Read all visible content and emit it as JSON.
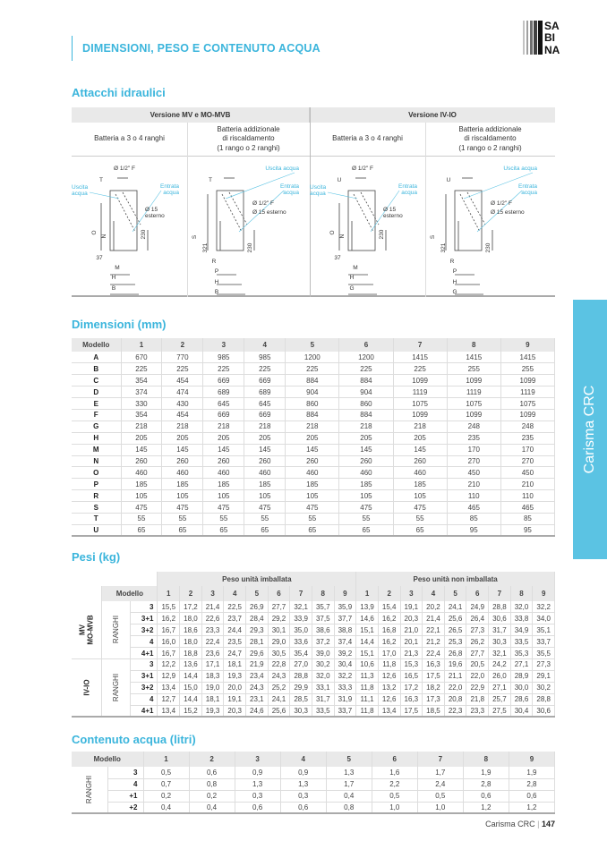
{
  "header": {
    "title": "DIMENSIONI, PESO E CONTENUTO ACQUA",
    "logo_text": "SABIANA",
    "accent": "#3bb5dc"
  },
  "side_tab": {
    "label": "Carisma CRC",
    "color": "#5bc3e3"
  },
  "attacchi": {
    "title": "Attacchi idraulici",
    "versions": [
      "Versione MV e MO-MVB",
      "Versione IV-IO"
    ],
    "columns": [
      "Batteria a 3 o 4 ranghi",
      "Batteria addizionale\ndi riscaldamento\n(1 rango o 2 ranghi)",
      "Batteria a 3 o 4 ranghi",
      "Batteria addizionale\ndi riscaldamento\n(1 rango o 2 ranghi)"
    ],
    "panels": [
      {
        "labels": [
          "Ø 1/2\" F",
          "T",
          "Uscita",
          "acqua",
          "Entrata",
          "acqua",
          "Ø 15",
          "esterno",
          "O",
          "N",
          "230",
          "37",
          "M",
          "H",
          "B"
        ]
      },
      {
        "labels": [
          "Uscita acqua",
          "T",
          "Entrata",
          "acqua",
          "Ø 1/2\" F",
          "Ø 15 esterno",
          "S",
          "321",
          "230",
          "R",
          "P",
          "H",
          "B"
        ]
      },
      {
        "labels": [
          "Ø 1/2\" F",
          "U",
          "Uscita",
          "acqua",
          "Entrata",
          "acqua",
          "Ø 15",
          "esterno",
          "O",
          "N",
          "230",
          "37",
          "M",
          "H",
          "G"
        ]
      },
      {
        "labels": [
          "Uscita acqua",
          "U",
          "Entrata",
          "acqua",
          "Ø 1/2\" F",
          "Ø 15 esterno",
          "S",
          "321",
          "230",
          "R",
          "P",
          "H",
          "G"
        ]
      }
    ]
  },
  "dimensioni": {
    "title": "Dimensioni (mm)",
    "header": [
      "Modello",
      "1",
      "2",
      "3",
      "4",
      "5",
      "6",
      "7",
      "8",
      "9"
    ],
    "rows": [
      [
        "A",
        "670",
        "770",
        "985",
        "985",
        "1200",
        "1200",
        "1415",
        "1415",
        "1415"
      ],
      [
        "B",
        "225",
        "225",
        "225",
        "225",
        "225",
        "225",
        "225",
        "255",
        "255"
      ],
      [
        "C",
        "354",
        "454",
        "669",
        "669",
        "884",
        "884",
        "1099",
        "1099",
        "1099"
      ],
      [
        "D",
        "374",
        "474",
        "689",
        "689",
        "904",
        "904",
        "1119",
        "1119",
        "1119"
      ],
      [
        "E",
        "330",
        "430",
        "645",
        "645",
        "860",
        "860",
        "1075",
        "1075",
        "1075"
      ],
      [
        "F",
        "354",
        "454",
        "669",
        "669",
        "884",
        "884",
        "1099",
        "1099",
        "1099"
      ],
      [
        "G",
        "218",
        "218",
        "218",
        "218",
        "218",
        "218",
        "218",
        "248",
        "248"
      ],
      [
        "H",
        "205",
        "205",
        "205",
        "205",
        "205",
        "205",
        "205",
        "235",
        "235"
      ],
      [
        "M",
        "145",
        "145",
        "145",
        "145",
        "145",
        "145",
        "145",
        "170",
        "170"
      ],
      [
        "N",
        "260",
        "260",
        "260",
        "260",
        "260",
        "260",
        "260",
        "270",
        "270"
      ],
      [
        "O",
        "460",
        "460",
        "460",
        "460",
        "460",
        "460",
        "460",
        "450",
        "450"
      ],
      [
        "P",
        "185",
        "185",
        "185",
        "185",
        "185",
        "185",
        "185",
        "210",
        "210"
      ],
      [
        "R",
        "105",
        "105",
        "105",
        "105",
        "105",
        "105",
        "105",
        "110",
        "110"
      ],
      [
        "S",
        "475",
        "475",
        "475",
        "475",
        "475",
        "475",
        "475",
        "465",
        "465"
      ],
      [
        "T",
        "55",
        "55",
        "55",
        "55",
        "55",
        "55",
        "55",
        "85",
        "85"
      ],
      [
        "U",
        "65",
        "65",
        "65",
        "65",
        "65",
        "65",
        "65",
        "95",
        "95"
      ]
    ]
  },
  "pesi": {
    "title": "Pesi (kg)",
    "group_headers": [
      "Peso unità imballata",
      "Peso unità non imballata"
    ],
    "modello_label": "Modello",
    "models": [
      "1",
      "2",
      "3",
      "4",
      "5",
      "6",
      "7",
      "8",
      "9"
    ],
    "ranghi_label": "RANGHI",
    "groups": [
      {
        "label": "MV\nMO-MVB",
        "rows": [
          [
            "3",
            "15,5",
            "17,2",
            "21,4",
            "22,5",
            "26,9",
            "27,7",
            "32,1",
            "35,7",
            "35,9",
            "13,9",
            "15,4",
            "19,1",
            "20,2",
            "24,1",
            "24,9",
            "28,8",
            "32,0",
            "32,2"
          ],
          [
            "3+1",
            "16,2",
            "18,0",
            "22,6",
            "23,7",
            "28,4",
            "29,2",
            "33,9",
            "37,5",
            "37,7",
            "14,6",
            "16,2",
            "20,3",
            "21,4",
            "25,6",
            "26,4",
            "30,6",
            "33,8",
            "34,0"
          ],
          [
            "3+2",
            "16,7",
            "18,6",
            "23,3",
            "24,4",
            "29,3",
            "30,1",
            "35,0",
            "38,6",
            "38,8",
            "15,1",
            "16,8",
            "21,0",
            "22,1",
            "26,5",
            "27,3",
            "31,7",
            "34,9",
            "35,1"
          ],
          [
            "4",
            "16,0",
            "18,0",
            "22,4",
            "23,5",
            "28,1",
            "29,0",
            "33,6",
            "37,2",
            "37,4",
            "14,4",
            "16,2",
            "20,1",
            "21,2",
            "25,3",
            "26,2",
            "30,3",
            "33,5",
            "33,7"
          ],
          [
            "4+1",
            "16,7",
            "18,8",
            "23,6",
            "24,7",
            "29,6",
            "30,5",
            "35,4",
            "39,0",
            "39,2",
            "15,1",
            "17,0",
            "21,3",
            "22,4",
            "26,8",
            "27,7",
            "32,1",
            "35,3",
            "35,5"
          ]
        ]
      },
      {
        "label": "IV-IO",
        "rows": [
          [
            "3",
            "12,2",
            "13,6",
            "17,1",
            "18,1",
            "21,9",
            "22,8",
            "27,0",
            "30,2",
            "30,4",
            "10,6",
            "11,8",
            "15,3",
            "16,3",
            "19,6",
            "20,5",
            "24,2",
            "27,1",
            "27,3"
          ],
          [
            "3+1",
            "12,9",
            "14,4",
            "18,3",
            "19,3",
            "23,4",
            "24,3",
            "28,8",
            "32,0",
            "32,2",
            "11,3",
            "12,6",
            "16,5",
            "17,5",
            "21,1",
            "22,0",
            "26,0",
            "28,9",
            "29,1"
          ],
          [
            "3+2",
            "13,4",
            "15,0",
            "19,0",
            "20,0",
            "24,3",
            "25,2",
            "29,9",
            "33,1",
            "33,3",
            "11,8",
            "13,2",
            "17,2",
            "18,2",
            "22,0",
            "22,9",
            "27,1",
            "30,0",
            "30,2"
          ],
          [
            "4",
            "12,7",
            "14,4",
            "18,1",
            "19,1",
            "23,1",
            "24,1",
            "28,5",
            "31,7",
            "31,9",
            "11,1",
            "12,6",
            "16,3",
            "17,3",
            "20,8",
            "21,8",
            "25,7",
            "28,6",
            "28,8"
          ],
          [
            "4+1",
            "13,4",
            "15,2",
            "19,3",
            "20,3",
            "24,6",
            "25,6",
            "30,3",
            "33,5",
            "33,7",
            "11,8",
            "13,4",
            "17,5",
            "18,5",
            "22,3",
            "23,3",
            "27,5",
            "30,4",
            "30,6"
          ]
        ]
      }
    ]
  },
  "contenuto": {
    "title": "Contenuto acqua (litri)",
    "header": [
      "Modello",
      "1",
      "2",
      "3",
      "4",
      "5",
      "6",
      "7",
      "8",
      "9"
    ],
    "ranghi_label": "RANGHI",
    "rows": [
      [
        "3",
        "0,5",
        "0,6",
        "0,9",
        "0,9",
        "1,3",
        "1,6",
        "1,7",
        "1,9",
        "1,9"
      ],
      [
        "4",
        "0,7",
        "0,8",
        "1,3",
        "1,3",
        "1,7",
        "2,2",
        "2,4",
        "2,8",
        "2,8"
      ],
      [
        "+1",
        "0,2",
        "0,2",
        "0,3",
        "0,3",
        "0,4",
        "0,5",
        "0,5",
        "0,6",
        "0,6"
      ],
      [
        "+2",
        "0,4",
        "0,4",
        "0,6",
        "0,6",
        "0,8",
        "1,0",
        "1,0",
        "1,2",
        "1,2"
      ]
    ]
  },
  "footer": {
    "product": "Carisma CRC",
    "page": "147"
  }
}
